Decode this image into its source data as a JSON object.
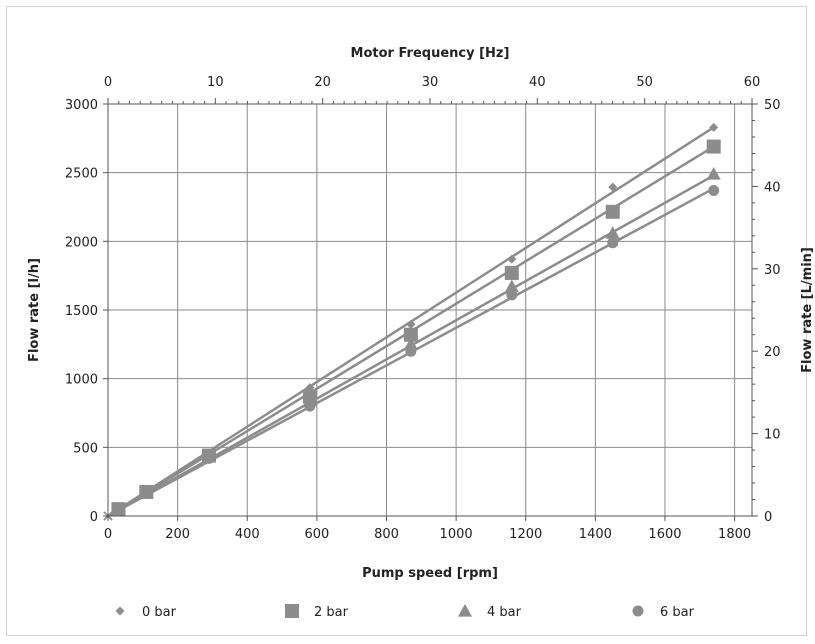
{
  "chart_data": {
    "type": "line",
    "title": "",
    "x_label": "Pump speed [rpm]",
    "y_label": "Flow rate [l/h]",
    "x2_label": "Motor Frequency [Hz]",
    "y2_label": "Flow rate [L/min]",
    "xlim": [
      0,
      1850
    ],
    "ylim": [
      0,
      3000
    ],
    "x2lim": [
      0,
      60
    ],
    "y2lim": [
      0,
      50
    ],
    "x_ticks": [
      "0",
      "200",
      "400",
      "600",
      "800",
      "1000",
      "1200",
      "1400",
      "1600",
      "1800"
    ],
    "y_ticks": [
      "0",
      "500",
      "1000",
      "1500",
      "2000",
      "2500",
      "3000"
    ],
    "x2_ticks": [
      "0",
      "10",
      "20",
      "30",
      "40",
      "50",
      "60"
    ],
    "y2_ticks": [
      "0",
      "10",
      "20",
      "30",
      "40",
      "50"
    ],
    "grid": true,
    "legend_position": "bottom",
    "series": [
      {
        "name": "0 bar",
        "marker": "diamond",
        "color": "#8c8c8c",
        "points": [
          [
            0,
            0
          ],
          [
            30,
            50
          ],
          [
            110,
            175
          ],
          [
            290,
            460
          ],
          [
            580,
            935
          ],
          [
            870,
            1395
          ],
          [
            1160,
            1870
          ],
          [
            1450,
            2395
          ],
          [
            1740,
            2830
          ]
        ],
        "fit": [
          [
            0,
            0
          ],
          [
            1740,
            2830
          ]
        ]
      },
      {
        "name": "2 bar",
        "marker": "square",
        "color": "#8c8c8c",
        "points": [
          [
            0,
            0
          ],
          [
            30,
            50
          ],
          [
            110,
            175
          ],
          [
            290,
            440
          ],
          [
            580,
            870
          ],
          [
            870,
            1320
          ],
          [
            1160,
            1770
          ],
          [
            1450,
            2215
          ],
          [
            1740,
            2690
          ]
        ],
        "fit": [
          [
            0,
            0
          ],
          [
            1740,
            2690
          ]
        ]
      },
      {
        "name": "4 bar",
        "marker": "triangle",
        "color": "#8c8c8c",
        "points": [
          [
            0,
            0
          ],
          [
            30,
            50
          ],
          [
            110,
            175
          ],
          [
            290,
            430
          ],
          [
            580,
            840
          ],
          [
            870,
            1250
          ],
          [
            1160,
            1670
          ],
          [
            1450,
            2060
          ],
          [
            1740,
            2490
          ]
        ],
        "fit": [
          [
            0,
            0
          ],
          [
            1740,
            2480
          ]
        ]
      },
      {
        "name": "6 bar",
        "marker": "circle",
        "color": "#8c8c8c",
        "points": [
          [
            0,
            0
          ],
          [
            30,
            50
          ],
          [
            110,
            170
          ],
          [
            290,
            420
          ],
          [
            580,
            800
          ],
          [
            870,
            1200
          ],
          [
            1160,
            1610
          ],
          [
            1450,
            1990
          ],
          [
            1740,
            2370
          ]
        ],
        "fit": [
          [
            0,
            0
          ],
          [
            1740,
            2385
          ]
        ]
      }
    ]
  }
}
